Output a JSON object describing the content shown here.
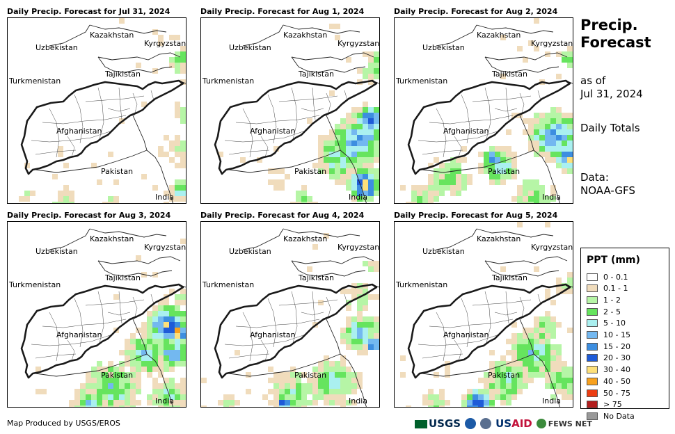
{
  "panels": [
    {
      "title": "Daily Precip. Forecast for Jul 31, 2024"
    },
    {
      "title": "Daily Precip. Forecast for Aug 1, 2024"
    },
    {
      "title": "Daily Precip. Forecast for Aug 2, 2024"
    },
    {
      "title": "Daily Precip. Forecast for Aug 3, 2024"
    },
    {
      "title": "Daily Precip. Forecast for Aug 4, 2024"
    },
    {
      "title": "Daily Precip. Forecast for Aug 5, 2024"
    }
  ],
  "map_labels": {
    "kazakhstan": "Kazakhstan",
    "uzbekistan": "Uzbekistan",
    "kyrgyzstan": "Kyrgyzstan",
    "tajikistan": "Tajikistan",
    "turkmenistan": "Turkmenistan",
    "afghanistan": "Afghanistan",
    "pakistan": "Pakistan",
    "india": "India"
  },
  "side": {
    "title_line1": "Precip.",
    "title_line2": "Forecast",
    "asof_line1": "as of",
    "asof_line2": "Jul 31, 2024",
    "totals": "Daily Totals",
    "data_line1": "Data:",
    "data_line2": "NOAA-GFS"
  },
  "legend": {
    "title": "PPT (mm)",
    "items": [
      {
        "label": "0 - 0.1",
        "color": "#ffffff"
      },
      {
        "label": "0.1 - 1",
        "color": "#f0dcbc"
      },
      {
        "label": "1 - 2",
        "color": "#b6f5a6"
      },
      {
        "label": "2 - 5",
        "color": "#66e45e"
      },
      {
        "label": "5 - 10",
        "color": "#aaf0f0"
      },
      {
        "label": "10 - 15",
        "color": "#73b8f0"
      },
      {
        "label": "15 - 20",
        "color": "#3d8ee0"
      },
      {
        "label": "20 - 30",
        "color": "#1e5bd8"
      },
      {
        "label": "30 - 40",
        "color": "#fde07a"
      },
      {
        "label": "40 - 50",
        "color": "#f8a11e"
      },
      {
        "label": "50 - 75",
        "color": "#ec3d12"
      },
      {
        "label": "> 75",
        "color": "#b21e1e"
      },
      {
        "label": "No Data",
        "color": "#999999"
      }
    ]
  },
  "footer": {
    "credit": "Map Produced by USGS/EROS",
    "logo_usgs": "USGS",
    "logo_usaid_a": "US",
    "logo_usaid_b": "AID",
    "logo_fews": "FEWS NET"
  }
}
